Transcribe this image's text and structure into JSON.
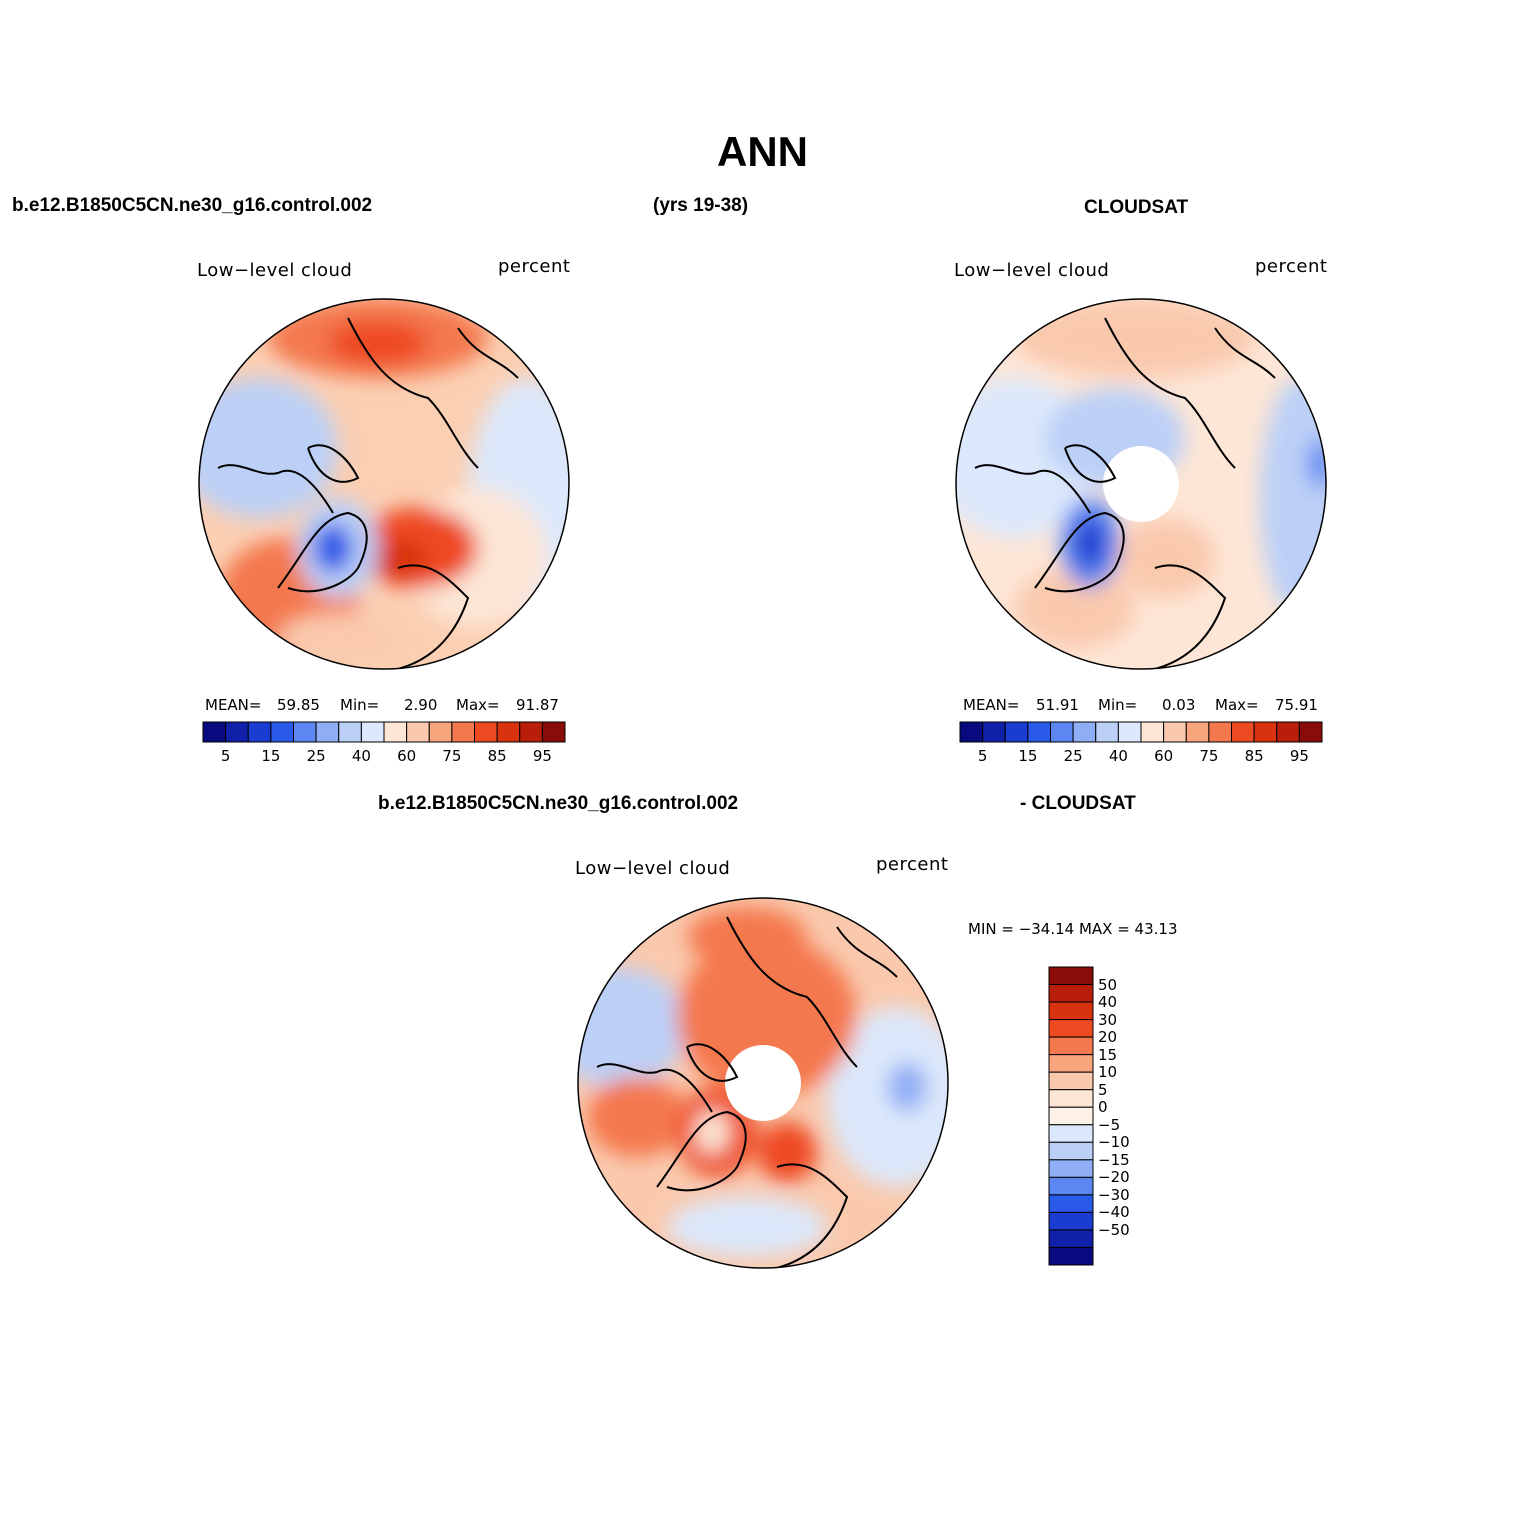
{
  "header": {
    "title": "ANN",
    "case_name": "b.e12.B1850C5CN.ne30_g16.control.002",
    "years": "(yrs 19-38)",
    "obs_name": "CLOUDSAT",
    "diff_case": "b.e12.B1850C5CN.ne30_g16.control.002",
    "diff_obs": "- CLOUDSAT"
  },
  "panels": {
    "model": {
      "variable": "Low−level cloud",
      "units": "percent",
      "stats": {
        "mean_label": "MEAN=",
        "mean": "59.85",
        "min_label": "Min=",
        "min": "2.90",
        "max_label": "Max=",
        "max": "91.87"
      }
    },
    "obs": {
      "variable": "Low−level cloud",
      "units": "percent",
      "stats": {
        "mean_label": "MEAN=",
        "mean": "51.91",
        "min_label": "Min=",
        "min": "0.03",
        "max_label": "Max=",
        "max": "75.91"
      }
    },
    "diff": {
      "variable": "Low−level cloud",
      "units": "percent",
      "minmax": "MIN = −34.14  MAX =   43.13"
    }
  },
  "colors": {
    "abs_scale": [
      "#0a0a80",
      "#1020a8",
      "#1a3cd0",
      "#2a5ae8",
      "#5c86f2",
      "#90aef5",
      "#bcd0f7",
      "#dce8fb",
      "#fde6d6",
      "#fac9ad",
      "#f8a47d",
      "#f4784e",
      "#ee4a22",
      "#d8320e",
      "#b81e0a",
      "#8a0c08"
    ],
    "diff_scale": [
      "#0a0a80",
      "#1020a8",
      "#1a3cd0",
      "#2a5ae8",
      "#5c86f2",
      "#90aef5",
      "#bcd0f7",
      "#dce8fb",
      "#fdf0e6",
      "#fde6d6",
      "#fac9ad",
      "#f8a47d",
      "#f4784e",
      "#ee4a22",
      "#d8320e",
      "#b81e0a",
      "#8a0c08"
    ]
  },
  "chart_data": [
    {
      "type": "heatmap",
      "projection": "north polar stereographic",
      "title": "b.e12.B1850C5CN.ne30_g16.control.002",
      "variable": "Low−level cloud",
      "units": "percent",
      "colorbar_levels": [
        5,
        10,
        15,
        20,
        25,
        30,
        40,
        50,
        60,
        70,
        75,
        80,
        85,
        90,
        95
      ],
      "colorbar_tick_labels": [
        "5",
        "15",
        "25",
        "40",
        "60",
        "75",
        "85",
        "95"
      ],
      "mean": 59.85,
      "min": 2.9,
      "max": 91.87
    },
    {
      "type": "heatmap",
      "projection": "north polar stereographic",
      "title": "CLOUDSAT",
      "variable": "Low−level cloud",
      "units": "percent",
      "colorbar_levels": [
        5,
        10,
        15,
        20,
        25,
        30,
        40,
        50,
        60,
        70,
        75,
        80,
        85,
        90,
        95
      ],
      "colorbar_tick_labels": [
        "5",
        "15",
        "25",
        "40",
        "60",
        "75",
        "85",
        "95"
      ],
      "mean": 51.91,
      "min": 0.03,
      "max": 75.91
    },
    {
      "type": "heatmap",
      "projection": "north polar stereographic",
      "title": "b.e12.B1850C5CN.ne30_g16.control.002 - CLOUDSAT",
      "variable": "Low−level cloud",
      "units": "percent",
      "colorbar_tick_labels": [
        "50",
        "40",
        "30",
        "20",
        "15",
        "10",
        "5",
        "0",
        "−5",
        "−10",
        "−15",
        "−20",
        "−30",
        "−40",
        "−50"
      ],
      "min": -34.14,
      "max": 43.13
    }
  ]
}
